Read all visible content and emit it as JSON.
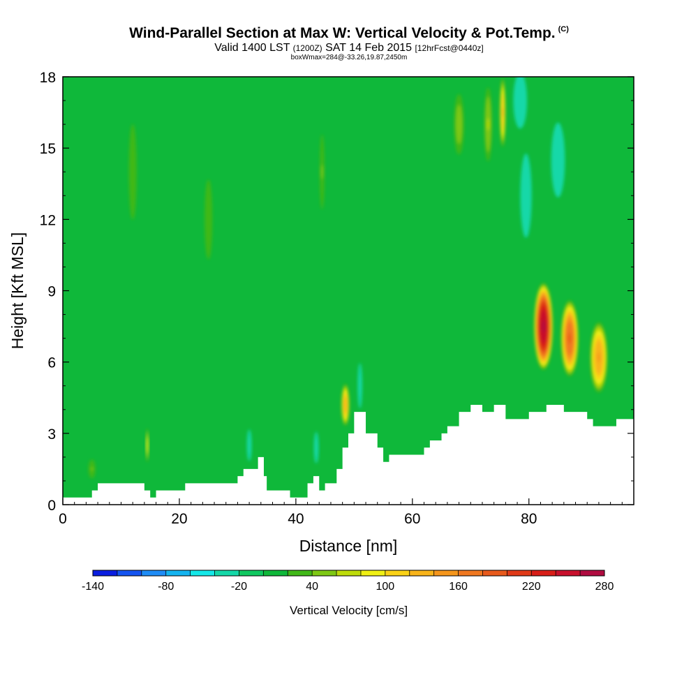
{
  "header": {
    "title": "Wind-Parallel Section at Max W: Vertical Velocity & Pot.Temp.",
    "title_mark": "(C)",
    "valid_a": "Valid 1400 LST",
    "valid_b": "(1200Z)",
    "valid_c": "SAT 14 Feb 2015",
    "valid_d": "[12hrFcst@0440z]",
    "box_info": "boxWmax=284@-33.26,19.87,2450m"
  },
  "chart_data": {
    "type": "heatmap",
    "title": "Wind-Parallel Section at Max W: Vertical Velocity & Pot.Temp.",
    "xlabel": "Distance [nm]",
    "ylabel": "Height [Kft MSL]",
    "xlim": [
      0,
      98
    ],
    "ylim": [
      0,
      18
    ],
    "xticks": [
      "0",
      "20",
      "40",
      "60",
      "80"
    ],
    "yticks": [
      "0",
      "3",
      "6",
      "9",
      "12",
      "15",
      "18"
    ],
    "colorbar": {
      "title": "Vertical Velocity [cm/s]",
      "tick_labels": [
        "-140",
        "-80",
        "-20",
        "40",
        "100",
        "160",
        "220",
        "280"
      ],
      "levels": [
        -140,
        -120,
        -100,
        -80,
        -60,
        -40,
        -20,
        0,
        20,
        40,
        60,
        80,
        100,
        120,
        140,
        160,
        180,
        200,
        220,
        240,
        260,
        280
      ],
      "colors": [
        "#0a1ee0",
        "#1454f0",
        "#1e8cf5",
        "#14b4f0",
        "#14e8e8",
        "#14d8a8",
        "#10c860",
        "#0fb83a",
        "#40b818",
        "#7ec814",
        "#bedc0a",
        "#f0f014",
        "#fad216",
        "#f8b41a",
        "#f5961c",
        "#f07820",
        "#e85a1c",
        "#e03a18",
        "#d81e18",
        "#c8102c",
        "#b00c40"
      ]
    },
    "background_level_cm_s": 0,
    "terrain_profile": {
      "x_nm": [
        0,
        4,
        5,
        6,
        12,
        14,
        15,
        16,
        20,
        21,
        25,
        28,
        30,
        31,
        33,
        33.5,
        34.5,
        35,
        39,
        41,
        42,
        43,
        44,
        45,
        47,
        48,
        49,
        50,
        51,
        52,
        54,
        55,
        56,
        60,
        62,
        63,
        65,
        66,
        68,
        70,
        72,
        74,
        76,
        79,
        80,
        83,
        86,
        87,
        90,
        91,
        94,
        95,
        98
      ],
      "height_kft": [
        0.3,
        0.3,
        0.6,
        0.9,
        0.9,
        0.6,
        0.3,
        0.6,
        0.6,
        0.9,
        0.9,
        0.9,
        1.2,
        1.5,
        1.5,
        2.0,
        1.2,
        0.6,
        0.3,
        0.3,
        0.9,
        1.2,
        0.6,
        0.9,
        1.5,
        2.4,
        3.0,
        3.9,
        3.9,
        3.0,
        2.4,
        1.8,
        2.1,
        2.1,
        2.4,
        2.7,
        3.0,
        3.3,
        3.9,
        4.2,
        3.9,
        4.2,
        3.6,
        3.6,
        3.9,
        4.2,
        3.9,
        3.9,
        3.6,
        3.3,
        3.3,
        3.6,
        3.6
      ]
    },
    "vertical_velocity_features": [
      {
        "x_nm": 82.5,
        "z_kft": 7.5,
        "peak_cm_s": 260,
        "width_nm": 3.2,
        "height_kft": 3.6
      },
      {
        "x_nm": 87.0,
        "z_kft": 7.0,
        "peak_cm_s": 180,
        "width_nm": 3.0,
        "height_kft": 3.2
      },
      {
        "x_nm": 92.0,
        "z_kft": 6.2,
        "peak_cm_s": 140,
        "width_nm": 3.0,
        "height_kft": 3.0
      },
      {
        "x_nm": 48.5,
        "z_kft": 4.2,
        "peak_cm_s": 130,
        "width_nm": 1.4,
        "height_kft": 1.8
      },
      {
        "x_nm": 51.0,
        "z_kft": 5.0,
        "peak_cm_s": -100,
        "width_nm": 0.8,
        "height_kft": 2.0
      },
      {
        "x_nm": 75.5,
        "z_kft": 16.5,
        "peak_cm_s": 120,
        "width_nm": 1.0,
        "height_kft": 3.0
      },
      {
        "x_nm": 78.5,
        "z_kft": 17.0,
        "peak_cm_s": -90,
        "width_nm": 2.5,
        "height_kft": 2.5
      },
      {
        "x_nm": 79.5,
        "z_kft": 13.0,
        "peak_cm_s": -60,
        "width_nm": 2.2,
        "height_kft": 4.0
      },
      {
        "x_nm": 85.0,
        "z_kft": 14.5,
        "peak_cm_s": -40,
        "width_nm": 3.0,
        "height_kft": 4.0
      },
      {
        "x_nm": 73.0,
        "z_kft": 16.0,
        "peak_cm_s": 60,
        "width_nm": 1.5,
        "height_kft": 3.5
      },
      {
        "x_nm": 32.0,
        "z_kft": 2.5,
        "peak_cm_s": -60,
        "width_nm": 0.9,
        "height_kft": 1.5
      },
      {
        "x_nm": 43.5,
        "z_kft": 2.4,
        "peak_cm_s": -60,
        "width_nm": 0.9,
        "height_kft": 1.5
      },
      {
        "x_nm": 14.5,
        "z_kft": 2.5,
        "peak_cm_s": 90,
        "width_nm": 0.5,
        "height_kft": 1.5
      },
      {
        "x_nm": 5.0,
        "z_kft": 1.5,
        "peak_cm_s": 40,
        "width_nm": 1.5,
        "height_kft": 1.0
      },
      {
        "x_nm": 68.0,
        "z_kft": 16.0,
        "peak_cm_s": 50,
        "width_nm": 2.0,
        "height_kft": 3.0
      },
      {
        "x_nm": 44.5,
        "z_kft": 14.0,
        "peak_cm_s": 40,
        "width_nm": 1.0,
        "height_kft": 4.0
      },
      {
        "x_nm": 25.0,
        "z_kft": 12.0,
        "peak_cm_s": 30,
        "width_nm": 2.0,
        "height_kft": 5.0
      },
      {
        "x_nm": 12.0,
        "z_kft": 14.0,
        "peak_cm_s": 30,
        "width_nm": 2.0,
        "height_kft": 6.0
      }
    ]
  }
}
